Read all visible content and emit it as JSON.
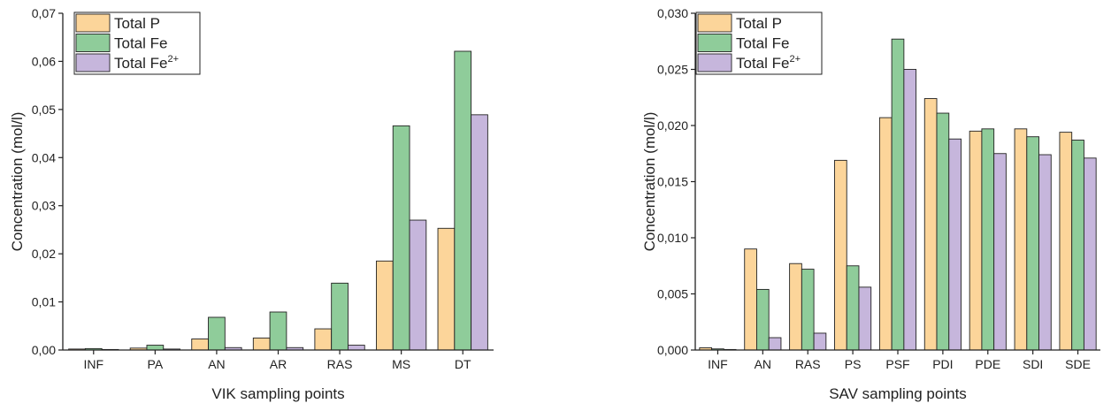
{
  "colors": {
    "total_p": "#fcd59a",
    "total_fe": "#8fcc9a",
    "total_fe2": "#c6b6dc",
    "axis": "#222222"
  },
  "chart_data": [
    {
      "type": "bar",
      "xlabel": "VIK sampling points",
      "ylabel": "Concentration (mol/l)",
      "ylim": [
        0,
        0.07
      ],
      "yticks": [
        "0,00",
        "0,01",
        "0,02",
        "0,03",
        "0,04",
        "0,05",
        "0,06",
        "0,07"
      ],
      "grid": false,
      "legend_position": "top-left",
      "categories": [
        "INF",
        "PA",
        "AN",
        "AR",
        "RAS",
        "MS",
        "DT"
      ],
      "series": [
        {
          "name": "Total P",
          "values": [
            0.0002,
            0.0004,
            0.0023,
            0.0025,
            0.0044,
            0.0185,
            0.0253
          ]
        },
        {
          "name": "Total Fe",
          "values": [
            0.0003,
            0.001,
            0.0068,
            0.0079,
            0.0139,
            0.0466,
            0.0621
          ]
        },
        {
          "name": "Total Fe",
          "superscript": "2+",
          "values": [
            0.0001,
            0.0002,
            0.0005,
            0.0005,
            0.001,
            0.027,
            0.0489
          ]
        }
      ]
    },
    {
      "type": "bar",
      "xlabel": "SAV sampling points",
      "ylabel": "Concentration (mol/l)",
      "ylim": [
        0,
        0.03
      ],
      "yticks": [
        "0,000",
        "0,005",
        "0,010",
        "0,015",
        "0,020",
        "0,025",
        "0,030"
      ],
      "grid": false,
      "legend_position": "top-left",
      "categories": [
        "INF",
        "AN",
        "RAS",
        "PS",
        "PSF",
        "PDI",
        "PDE",
        "SDI",
        "SDE"
      ],
      "series": [
        {
          "name": "Total P",
          "values": [
            0.0002,
            0.009,
            0.0077,
            0.0169,
            0.0207,
            0.0224,
            0.0195,
            0.0197,
            0.0194
          ]
        },
        {
          "name": "Total Fe",
          "values": [
            0.0001,
            0.0054,
            0.0072,
            0.0075,
            0.0277,
            0.0211,
            0.0197,
            0.019,
            0.0187
          ]
        },
        {
          "name": "Total Fe",
          "superscript": "2+",
          "values": [
            0.0,
            0.0011,
            0.0015,
            0.0056,
            0.025,
            0.0188,
            0.0175,
            0.0174,
            0.0171
          ]
        }
      ]
    }
  ]
}
